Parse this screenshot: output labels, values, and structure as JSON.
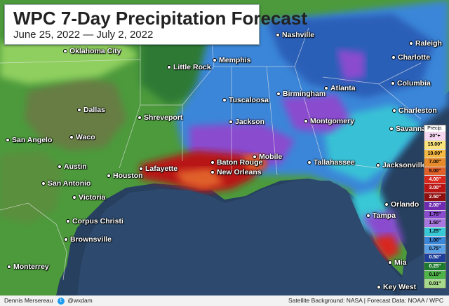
{
  "title": "WPC 7-Day Precipitation Forecast",
  "subtitle": "June 25, 2022 — July 2, 2022",
  "cities": [
    {
      "name": "Nashville"
    },
    {
      "name": "Raleigh"
    },
    {
      "name": "Oklahoma City"
    },
    {
      "name": "Memphis"
    },
    {
      "name": "Charlotte"
    },
    {
      "name": "Little Rock"
    },
    {
      "name": "Columbia"
    },
    {
      "name": "Atlanta"
    },
    {
      "name": "Birmingham"
    },
    {
      "name": "Tuscaloosa"
    },
    {
      "name": "Dallas"
    },
    {
      "name": "Charleston"
    },
    {
      "name": "Shreveport"
    },
    {
      "name": "Jackson"
    },
    {
      "name": "Montgomery"
    },
    {
      "name": "Waco"
    },
    {
      "name": "San Angelo"
    },
    {
      "name": "Savannah"
    },
    {
      "name": "Mobile"
    },
    {
      "name": "Baton Rouge"
    },
    {
      "name": "Tallahassee"
    },
    {
      "name": "Lafayette"
    },
    {
      "name": "Austin"
    },
    {
      "name": "Jacksonville"
    },
    {
      "name": "New Orleans"
    },
    {
      "name": "Houston"
    },
    {
      "name": "San Antonio"
    },
    {
      "name": "Victoria"
    },
    {
      "name": "Orlando"
    },
    {
      "name": "Tampa"
    },
    {
      "name": "Corpus Christi"
    },
    {
      "name": "Brownsville"
    },
    {
      "name": "Monterrey"
    },
    {
      "name": "Mia"
    },
    {
      "name": "Key West"
    }
  ],
  "legend": {
    "header": "Precip.",
    "entries": [
      {
        "label": "20\"+",
        "color": "#f6d7f2"
      },
      {
        "label": "15.00\"",
        "color": "#f9e37a"
      },
      {
        "label": "10.00\"",
        "color": "#f5b842"
      },
      {
        "label": "7.00\"",
        "color": "#e68a2b"
      },
      {
        "label": "5.00\"",
        "color": "#e0602a"
      },
      {
        "label": "4.00\"",
        "color": "#d8271d"
      },
      {
        "label": "3.00\"",
        "color": "#b81414"
      },
      {
        "label": "2.50\"",
        "color": "#8e0f0f"
      },
      {
        "label": "2.00\"",
        "color": "#6f2cb0"
      },
      {
        "label": "1.75\"",
        "color": "#8a4ccf"
      },
      {
        "label": "1.50\"",
        "color": "#a877e0"
      },
      {
        "label": "1.25\"",
        "color": "#39c8d6"
      },
      {
        "label": "1.00\"",
        "color": "#3a86d8"
      },
      {
        "label": "0.75\"",
        "color": "#5aa0e6"
      },
      {
        "label": "0.50\"",
        "color": "#1f3f9a"
      },
      {
        "label": "0.25\"",
        "color": "#1d7a2f"
      },
      {
        "label": "0.10\"",
        "color": "#4fb34a"
      },
      {
        "label": "0.01\"",
        "color": "#a8d88a"
      }
    ]
  },
  "footer": {
    "author": "Dennis Mersereau",
    "handle": "@wxdam",
    "source": "Satellite Background: NASA | Forecast Data: NOAA / WPC"
  }
}
